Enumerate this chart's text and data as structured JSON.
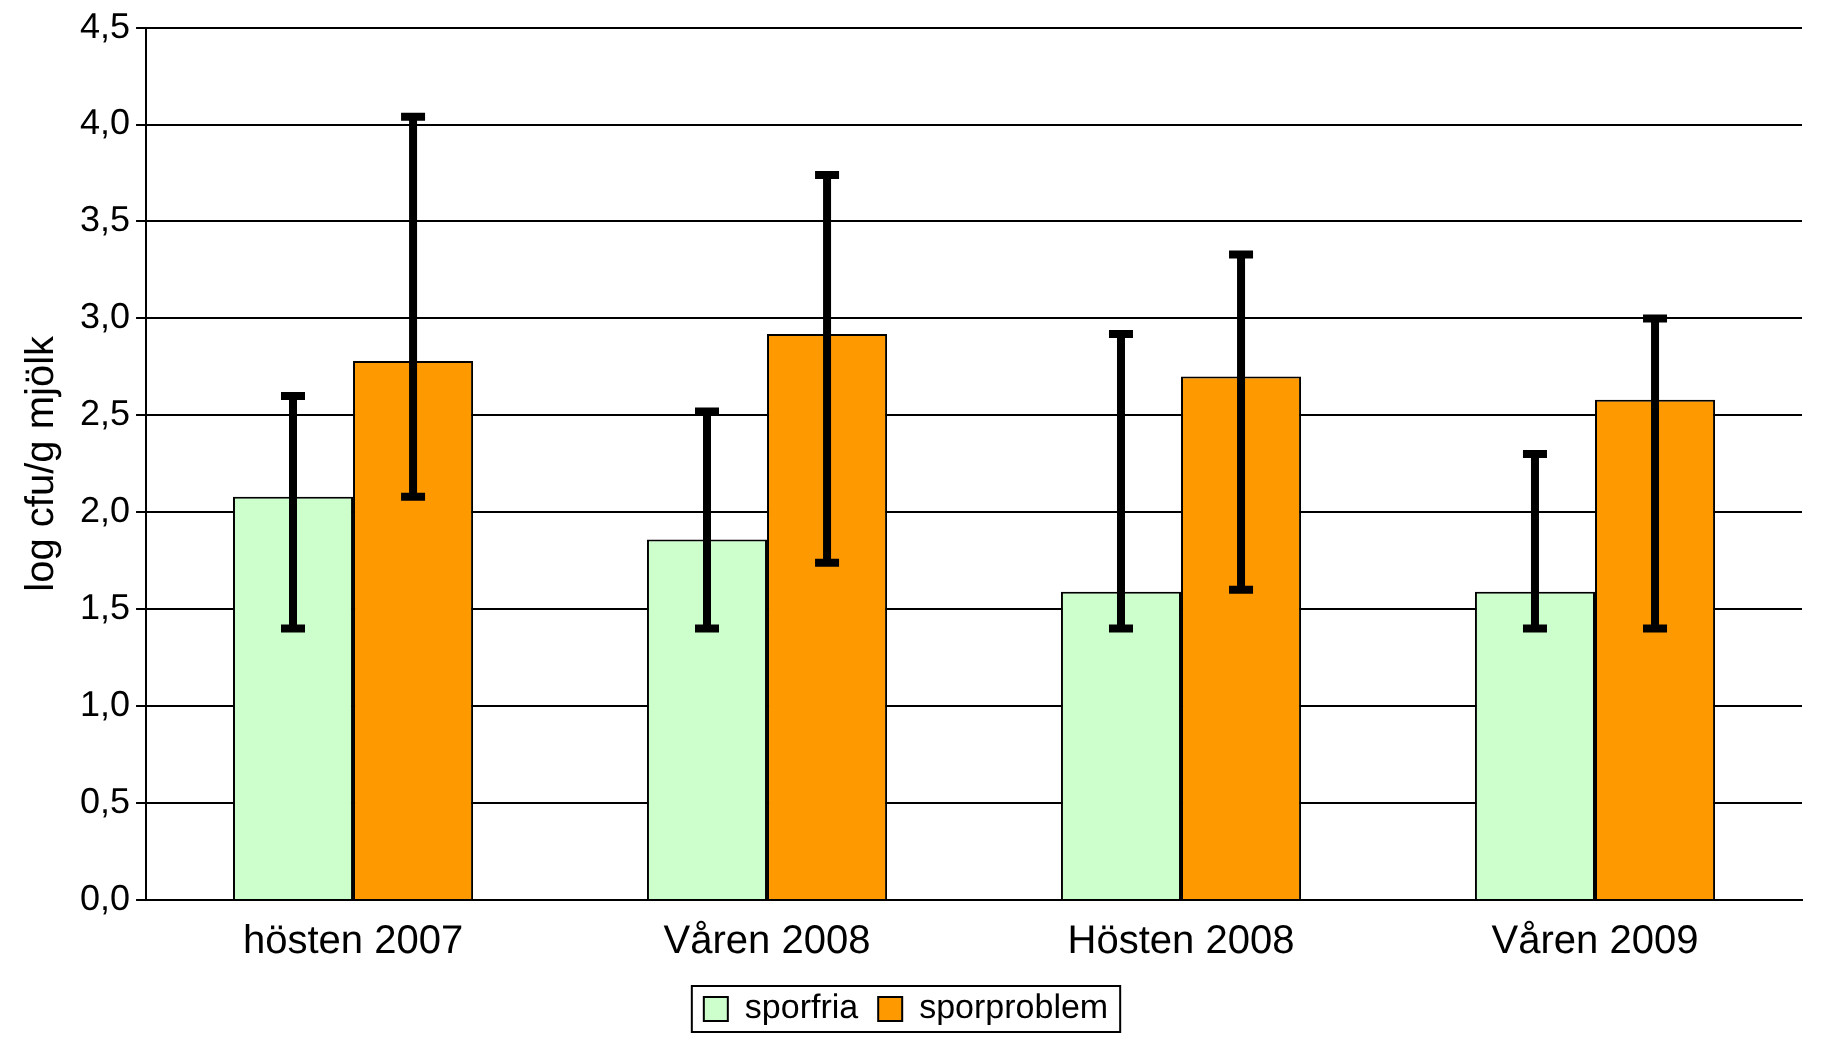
{
  "chart_data": {
    "type": "bar",
    "ylabel": "log cfu/g mjölk",
    "categories": [
      "hösten 2007",
      "Våren 2008",
      "Hösten 2008",
      "Våren 2009"
    ],
    "series": [
      {
        "name": "sporfria",
        "color": "#ccffcc",
        "values": [
          2.08,
          1.86,
          1.59,
          1.59
        ],
        "errors": [
          [
            1.4,
            2.6
          ],
          [
            1.4,
            2.52
          ],
          [
            1.4,
            2.92
          ],
          [
            1.4,
            2.3
          ]
        ]
      },
      {
        "name": "sporproblem",
        "color": "#ff9900",
        "values": [
          2.78,
          2.92,
          2.7,
          2.58
        ],
        "errors": [
          [
            2.08,
            4.04
          ],
          [
            1.74,
            3.74
          ],
          [
            1.6,
            3.33
          ],
          [
            1.4,
            3.0
          ]
        ]
      }
    ],
    "ylim": [
      0,
      4.5
    ],
    "yticks": [
      {
        "value": 0,
        "label": "0,0"
      },
      {
        "value": 0.5,
        "label": "0,5"
      },
      {
        "value": 1,
        "label": "1,0"
      },
      {
        "value": 1.5,
        "label": "1,5"
      },
      {
        "value": 2,
        "label": "2,0"
      },
      {
        "value": 2.5,
        "label": "2,5"
      },
      {
        "value": 3,
        "label": "3,0"
      },
      {
        "value": 3.5,
        "label": "3,5"
      },
      {
        "value": 4,
        "label": "4,0"
      },
      {
        "value": 4.5,
        "label": "4,5"
      }
    ],
    "grid": "y",
    "legend": "bottom"
  }
}
